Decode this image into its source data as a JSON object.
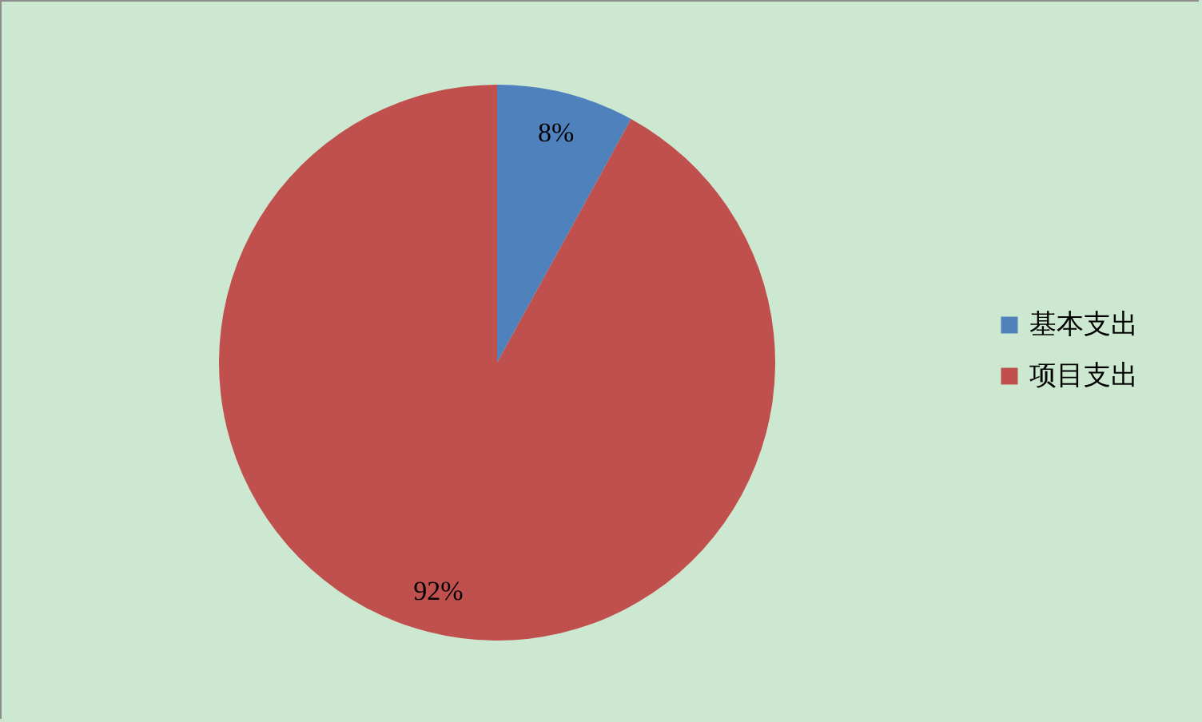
{
  "chart_data": {
    "type": "pie",
    "categories": [
      "基本支出",
      "项目支出"
    ],
    "values": [
      8,
      92
    ],
    "colors": [
      "#4f81bd",
      "#c0504d"
    ],
    "value_labels": [
      "8%",
      "92%"
    ],
    "legend": "right"
  }
}
